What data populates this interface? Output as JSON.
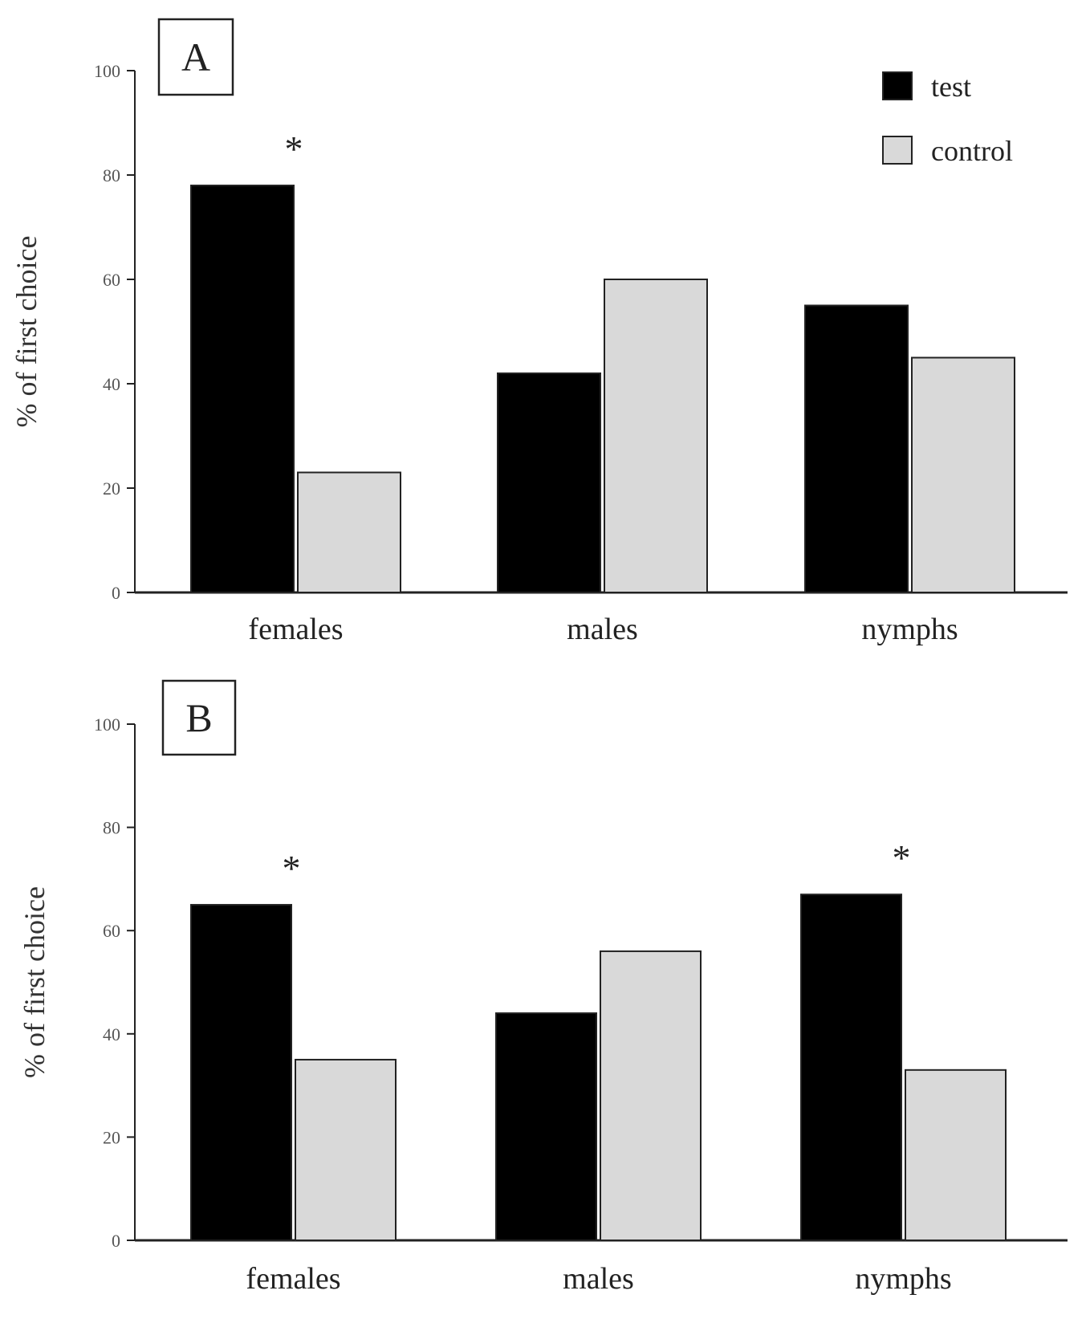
{
  "chart_data": [
    {
      "type": "bar",
      "panel_label": "A",
      "categories": [
        "females",
        "males",
        "nymphs"
      ],
      "series": [
        {
          "name": "test",
          "color": "#000000",
          "values": [
            78,
            42,
            55
          ]
        },
        {
          "name": "control",
          "color": "#d9d9d9",
          "values": [
            23,
            60,
            45
          ]
        }
      ],
      "ylabel": "% of first choice",
      "xlabel": "",
      "ylim": [
        0,
        100
      ],
      "yticks": [
        0,
        20,
        40,
        60,
        80,
        100
      ],
      "significance": [
        {
          "category": "females",
          "label": "*"
        }
      ],
      "legend_position": "top-right"
    },
    {
      "type": "bar",
      "panel_label": "B",
      "categories": [
        "females",
        "males",
        "nymphs"
      ],
      "series": [
        {
          "name": "test",
          "color": "#000000",
          "values": [
            65,
            44,
            67
          ]
        },
        {
          "name": "control",
          "color": "#d9d9d9",
          "values": [
            35,
            56,
            33
          ]
        }
      ],
      "ylabel": "% of first choice",
      "xlabel": "",
      "ylim": [
        0,
        100
      ],
      "yticks": [
        0,
        20,
        40,
        60,
        80,
        100
      ],
      "significance": [
        {
          "category": "females",
          "label": "*"
        },
        {
          "category": "nymphs",
          "label": "*"
        }
      ],
      "legend_position": "none"
    }
  ]
}
